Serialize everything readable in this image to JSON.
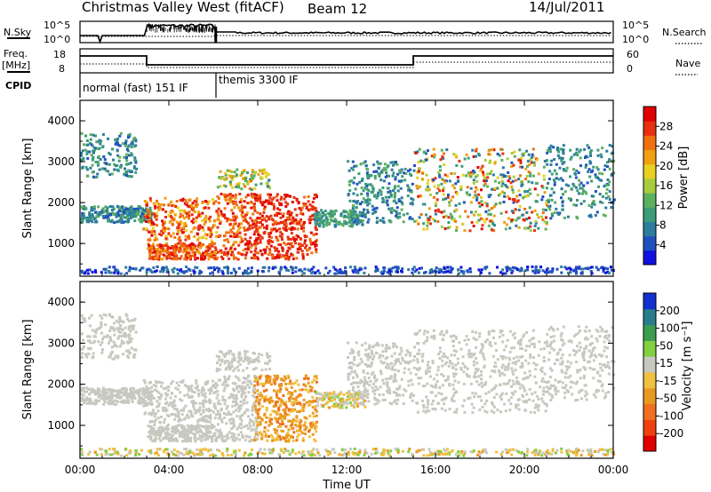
{
  "header": {
    "title": "Christmas Valley West (fitACF)",
    "beam": "Beam 12",
    "date": "14/Jul/2011"
  },
  "top_panels": {
    "nsky_label": "N.Sky",
    "nsearch_label": "N.Search",
    "freq_label": "Freq.",
    "freq_unit": "[MHz]",
    "nave_label": "Nave",
    "cpid_label": "CPID",
    "nsky_ticks": [
      "10^5",
      "10^0"
    ],
    "nsearch_ticks": [
      "10^5",
      "10^0"
    ],
    "freq_ticks": [
      "18",
      "8"
    ],
    "nave_ticks": [
      "60",
      "0"
    ]
  },
  "cpid_segments": [
    {
      "label": "normal (fast) 151 IF",
      "start_hour": 0
    },
    {
      "label": "themis 3300 IF",
      "start_hour": 6
    }
  ],
  "colors": {
    "power": [
      "#1010e0",
      "#2050c0",
      "#2d7c9d",
      "#3c9c78",
      "#5db060",
      "#a8cc3c",
      "#e8d020",
      "#f0a010",
      "#f07010",
      "#e83010",
      "#e00000"
    ],
    "velocity": [
      "#e00000",
      "#f04010",
      "#f07020",
      "#e89a20",
      "#f0c040",
      "#c8c8c0",
      "#80d040",
      "#3c9c50",
      "#287c8c",
      "#1030d0"
    ]
  },
  "chart_data": [
    {
      "type": "heatmap",
      "ylabel": "Slant Range [km]",
      "xlabel": "Time UT",
      "x_ticks": [
        "00:00",
        "04:00",
        "08:00",
        "12:00",
        "16:00",
        "20:00",
        "00:00"
      ],
      "y_ticks": [
        "1000",
        "2000",
        "3000",
        "4000"
      ],
      "xlim": [
        0,
        24
      ],
      "ylim": [
        200,
        4500
      ],
      "colorbar_label": "Power [dB]",
      "colorbar_ticks": [
        "4",
        "8",
        "12",
        "16",
        "20",
        "24",
        "28"
      ]
    },
    {
      "type": "heatmap",
      "ylabel": "Slant Range [km]",
      "xlabel": "Time UT",
      "x_ticks": [
        "00:00",
        "04:00",
        "08:00",
        "12:00",
        "16:00",
        "20:00",
        "00:00"
      ],
      "y_ticks": [
        "1000",
        "2000",
        "3000",
        "4000"
      ],
      "xlim": [
        0,
        24
      ],
      "ylim": [
        200,
        4500
      ],
      "colorbar_label": "Velocity [m s⁻¹]",
      "colorbar_ticks": [
        "200",
        "100",
        "50",
        "15",
        "-15",
        "-50",
        "-100",
        "-200"
      ]
    }
  ]
}
